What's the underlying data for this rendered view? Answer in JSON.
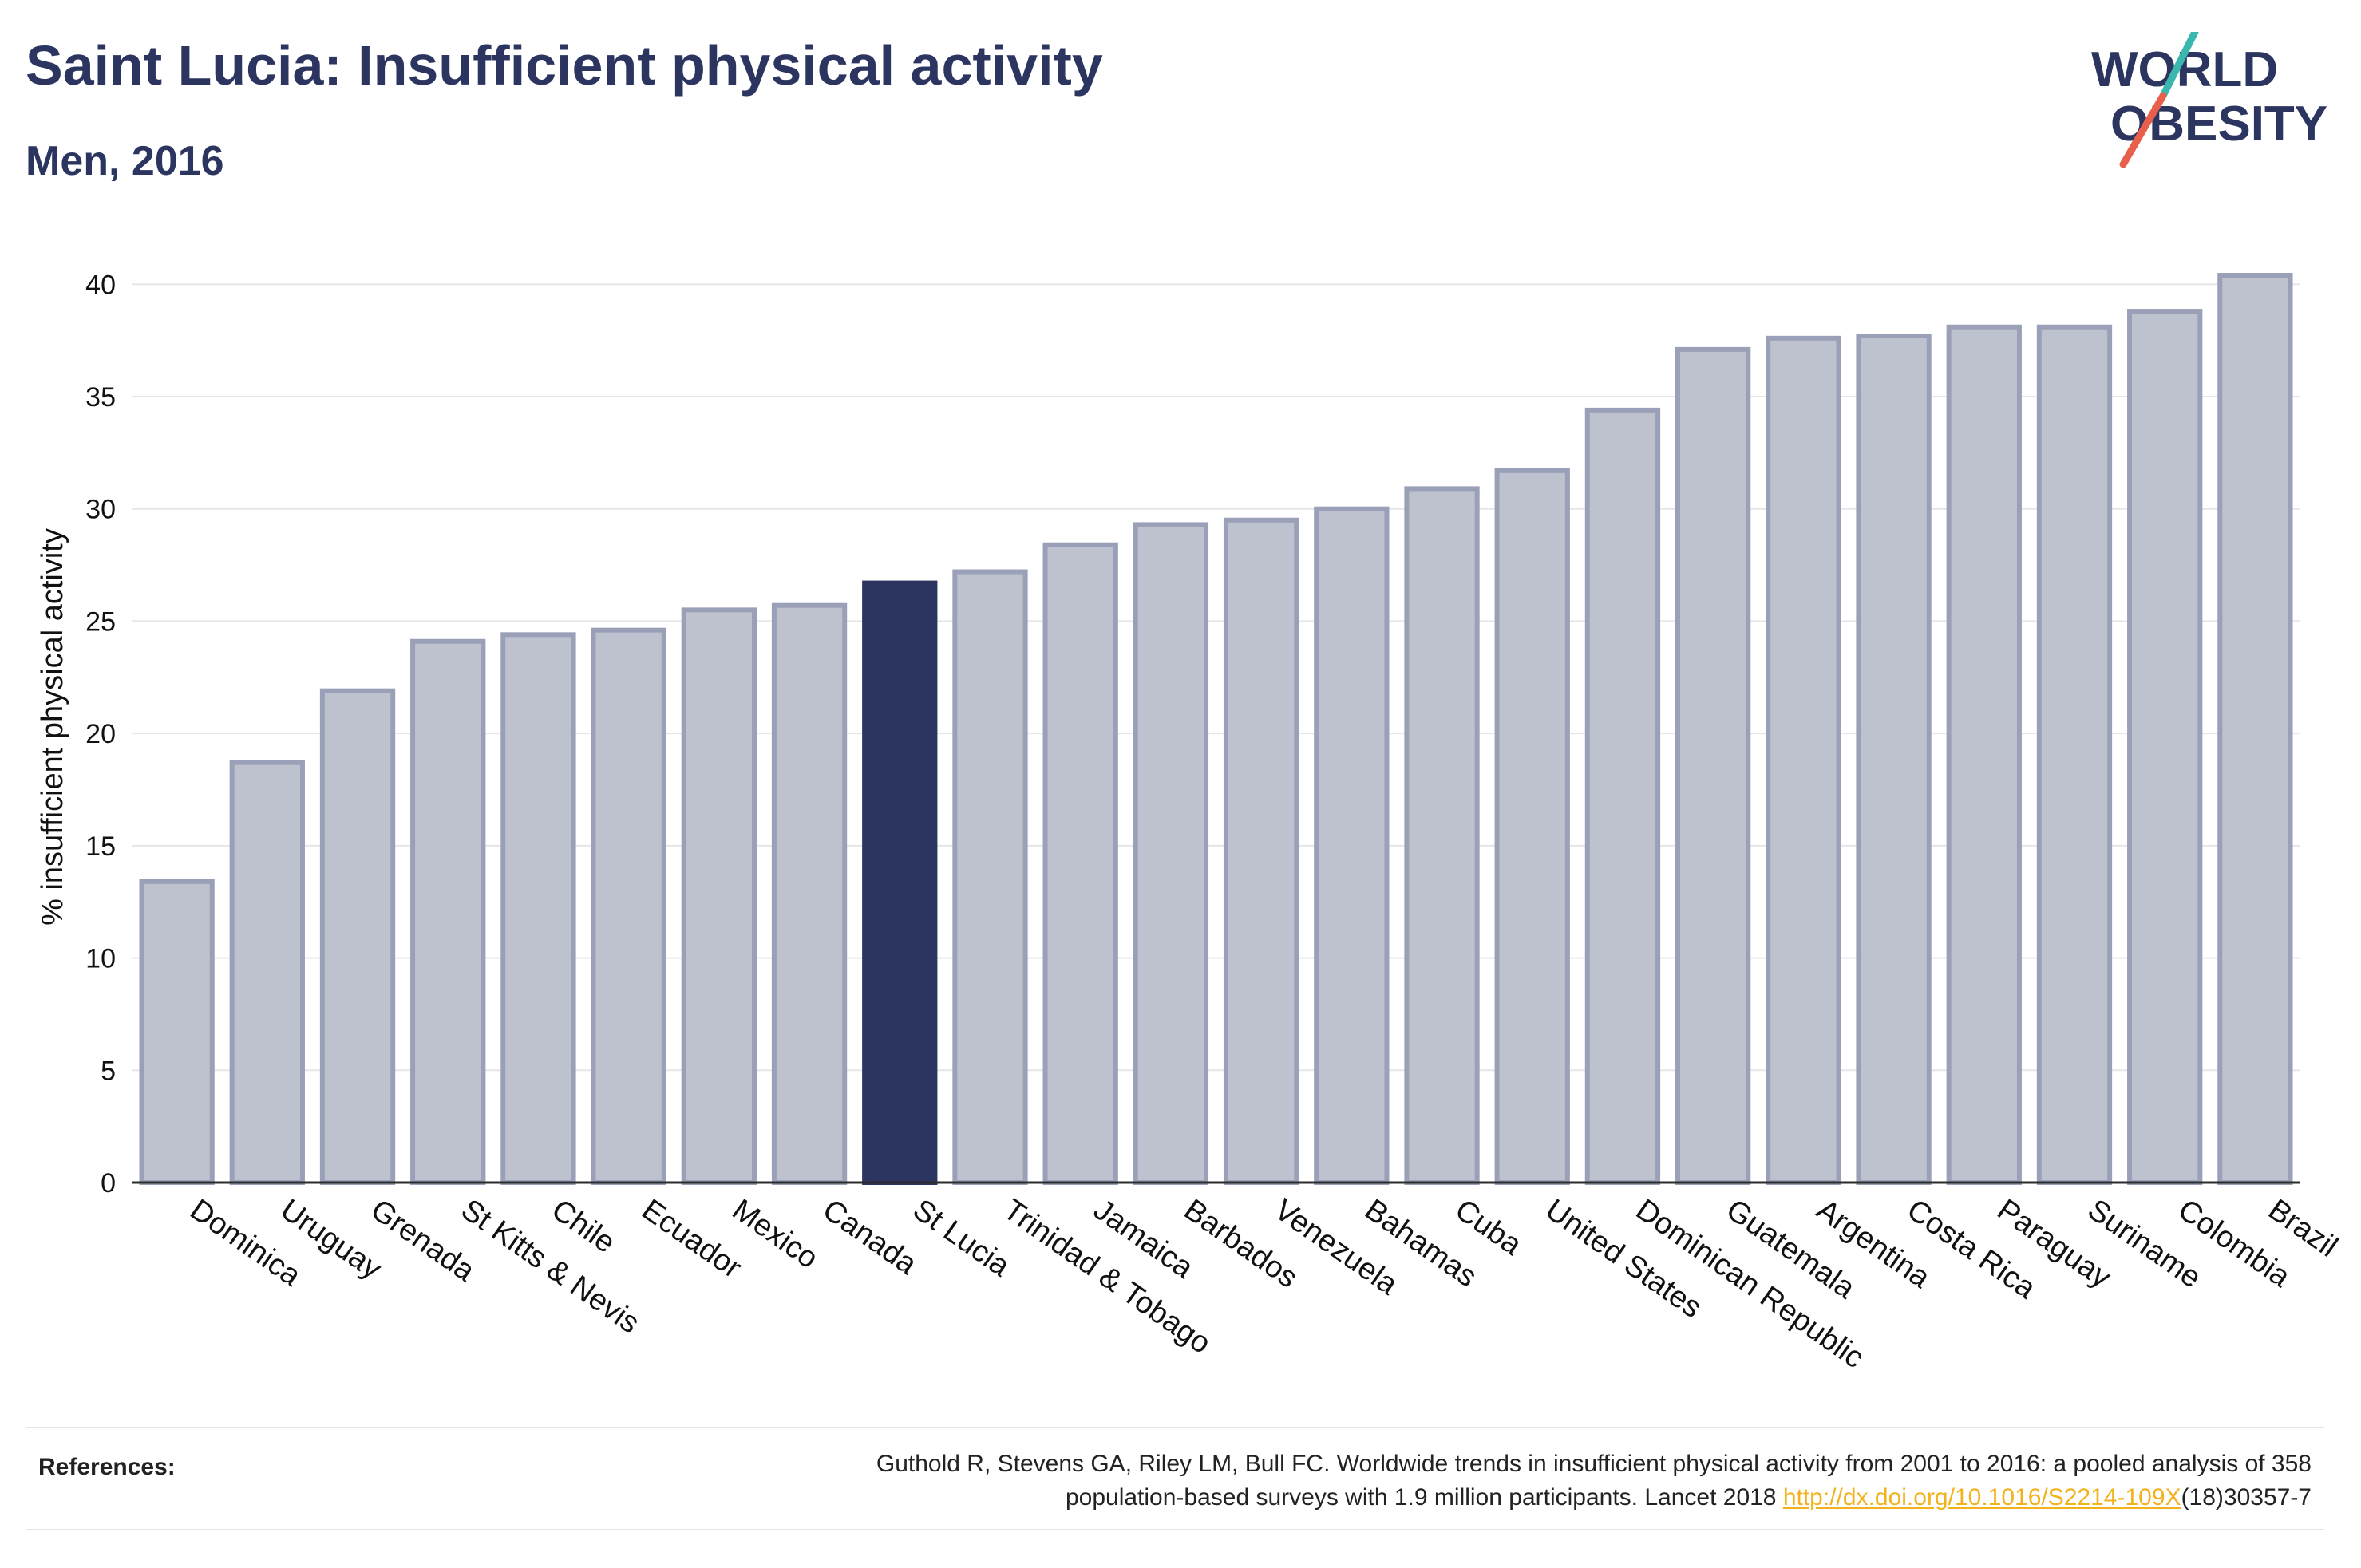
{
  "header": {
    "title": "Saint Lucia: Insufficient physical activity",
    "subtitle": "Men, 2016"
  },
  "logo": {
    "line1": "WORLD",
    "line2": "OBESITY",
    "accent_teal": "#3ab8b0",
    "accent_red": "#e8604c"
  },
  "colors": {
    "highlight_bar": "#2b3560",
    "other_bar_fill": "#bec2cf",
    "other_bar_stroke": "#9aa0b8",
    "text": "#2b3560"
  },
  "chart_data": {
    "type": "bar",
    "title": "",
    "xlabel": "",
    "ylabel": "% insufficient physical activity",
    "ylim": [
      0,
      42
    ],
    "yticks": [
      0,
      5,
      10,
      15,
      20,
      25,
      30,
      35,
      40
    ],
    "grid": true,
    "highlight": "St Lucia",
    "categories": [
      "Dominica",
      "Uruguay",
      "Grenada",
      "St Kitts & Nevis",
      "Chile",
      "Ecuador",
      "Mexico",
      "Canada",
      "St Lucia",
      "Trinidad & Tobago",
      "Jamaica",
      "Barbados",
      "Venezuela",
      "Bahamas",
      "Cuba",
      "United States",
      "Dominican Republic",
      "Guatemala",
      "Argentina",
      "Costa Rica",
      "Paraguay",
      "Suriname",
      "Colombia",
      "Brazil"
    ],
    "values": [
      13.4,
      18.7,
      21.9,
      24.1,
      24.4,
      24.6,
      25.5,
      25.7,
      26.7,
      27.2,
      28.4,
      29.3,
      29.5,
      30.0,
      30.9,
      31.7,
      34.4,
      37.1,
      37.6,
      37.7,
      38.1,
      38.1,
      38.8,
      40.4
    ]
  },
  "references": {
    "label": "References:",
    "line1": "Guthold R, Stevens GA, Riley LM, Bull FC. Worldwide trends in insufficient physical activity from 2001 to 2016: a pooled analysis of 358",
    "line2_prefix": "population-based surveys with 1.9 million participants. Lancet 2018 ",
    "link_text": "http://dx.doi.org/10.1016/S2214-109X",
    "line2_suffix": "(18)30357-7"
  }
}
